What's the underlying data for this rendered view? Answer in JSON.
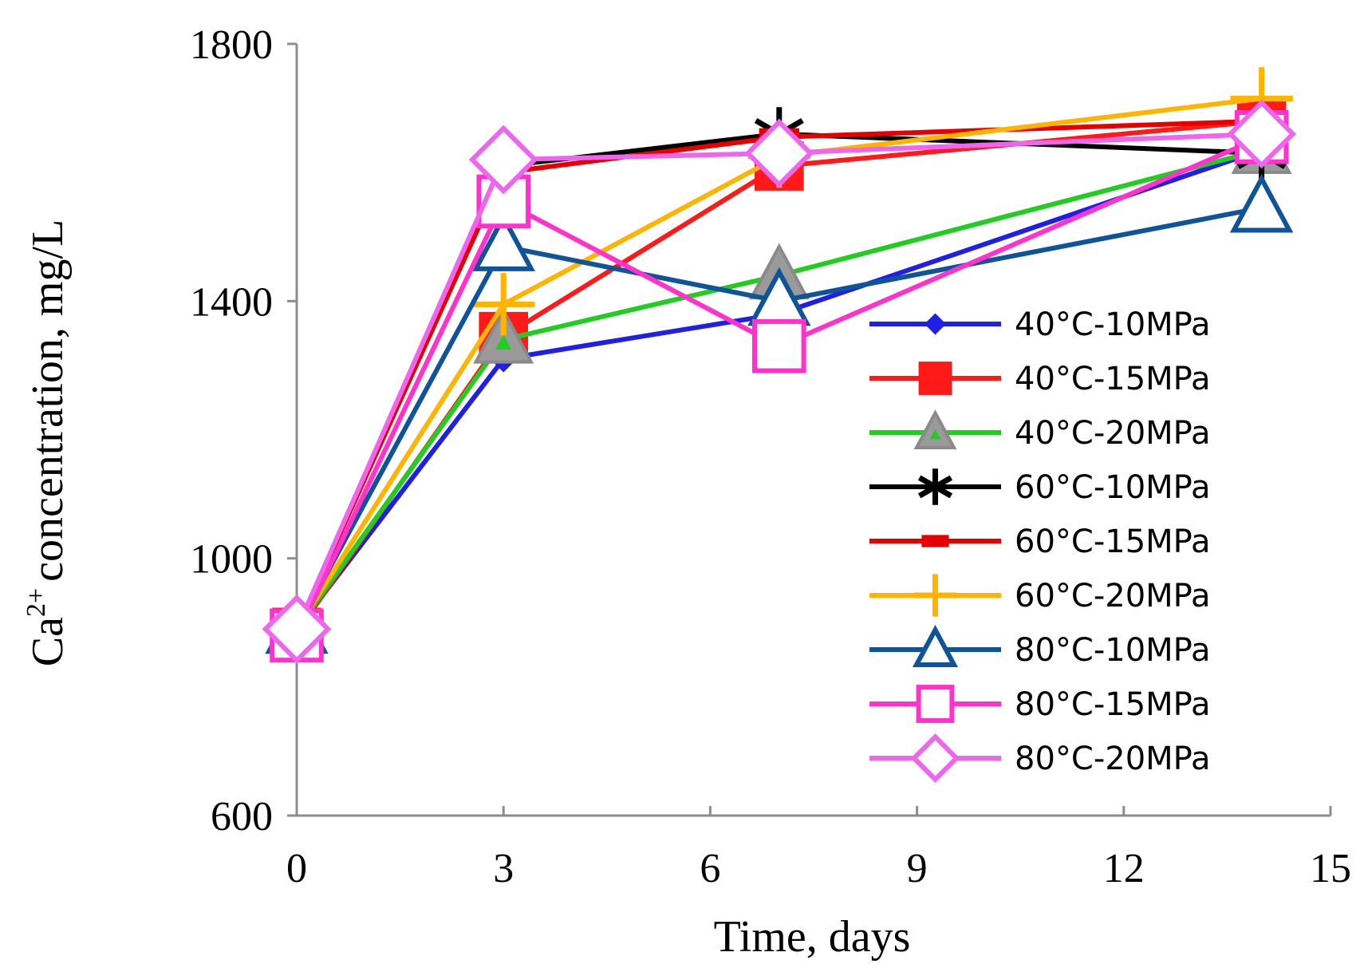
{
  "chart_data": {
    "type": "line",
    "title": "",
    "xlabel": "Time, days",
    "ylabel_main": "Ca",
    "ylabel_sup": "2+",
    "ylabel_rest": "concentration, mg/L",
    "xlim": [
      0,
      15
    ],
    "ylim": [
      600,
      1800
    ],
    "xticks": [
      0,
      3,
      6,
      9,
      12,
      15
    ],
    "yticks": [
      600,
      1000,
      1400,
      1800
    ],
    "grid": false,
    "legend_position": "right",
    "x": [
      0,
      3,
      7,
      14
    ],
    "series": [
      {
        "name": "40°C-10MPa",
        "color": "#1f1fe6",
        "marker": "diamond-small",
        "values": [
          890,
          1310,
          1380,
          1635
        ]
      },
      {
        "name": "40°C-15MPa",
        "color": "#ff1a1a",
        "marker": "square",
        "values": [
          885,
          1345,
          1610,
          1680
        ]
      },
      {
        "name": "40°C-20MPa",
        "color": "#22cc22",
        "marker": "triangle",
        "values": [
          890,
          1340,
          1440,
          1635
        ]
      },
      {
        "name": "60°C-10MPa",
        "color": "#000000",
        "marker": "asterisk",
        "values": [
          890,
          1610,
          1660,
          1630
        ]
      },
      {
        "name": "60°C-15MPa",
        "color": "#e60000",
        "marker": "dash",
        "values": [
          890,
          1600,
          1655,
          1680
        ]
      },
      {
        "name": "60°C-20MPa",
        "color": "#ffb400",
        "marker": "plus",
        "values": [
          890,
          1395,
          1625,
          1715
        ]
      },
      {
        "name": "80°C-10MPa",
        "color": "#0f5499",
        "marker": "triangle-open",
        "values": [
          890,
          1485,
          1400,
          1545
        ]
      },
      {
        "name": "80°C-15MPa",
        "color": "#ff33cc",
        "marker": "square-open",
        "values": [
          880,
          1555,
          1330,
          1655
        ]
      },
      {
        "name": "80°C-20MPa",
        "color": "#ee66ee",
        "marker": "diamond-open",
        "values": [
          890,
          1620,
          1630,
          1660
        ]
      }
    ]
  }
}
